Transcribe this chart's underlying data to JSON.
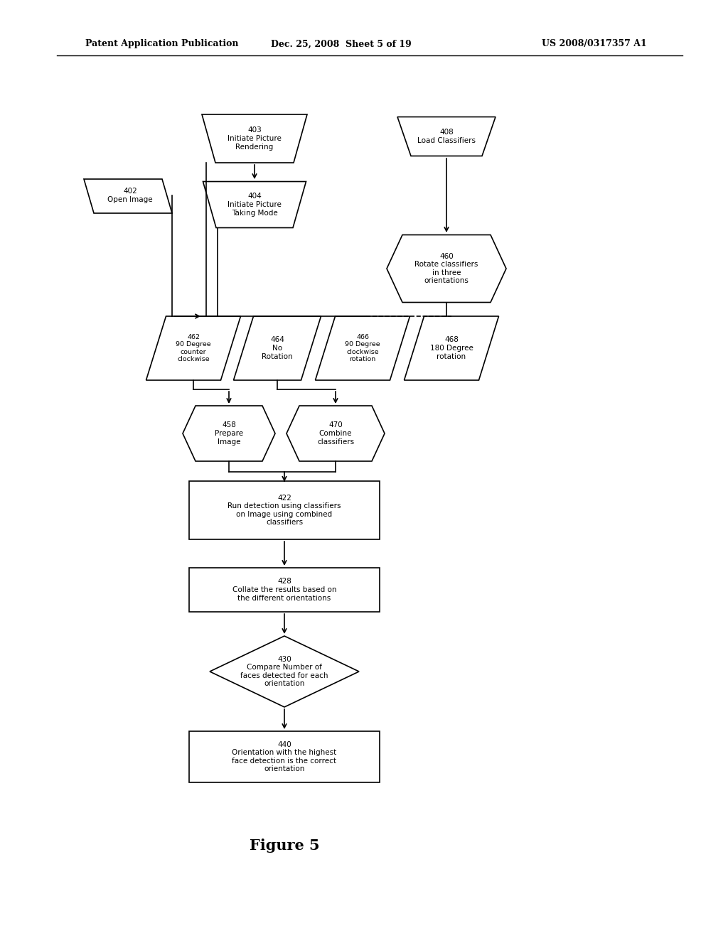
{
  "title": "Figure 5",
  "header_left": "Patent Application Publication",
  "header_center": "Dec. 25, 2008  Sheet 5 of 19",
  "header_right": "US 2008/0317357 A1",
  "bg_color": "#ffffff",
  "lw": 1.2,
  "fs": 7.5,
  "fs_title": 15
}
